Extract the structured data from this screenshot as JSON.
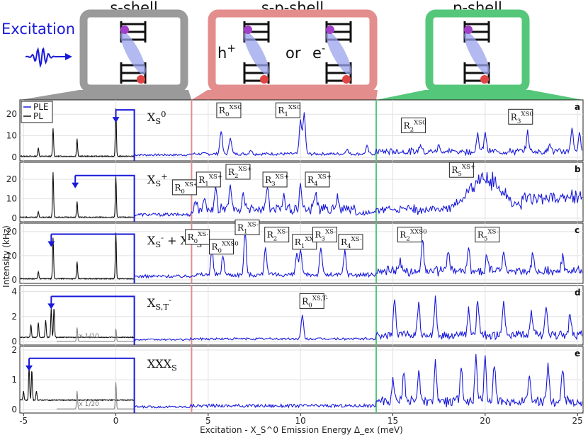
{
  "header": {
    "shells": [
      "s-shell",
      "s-p-shell",
      "p-shell"
    ],
    "excitation_label": "Excitation",
    "sp_text_left": "h",
    "sp_text_left_sup": "+",
    "sp_text_mid": "or",
    "sp_text_right": "e",
    "sp_text_right_sup": "-",
    "shell_colors": [
      "#9a9a9a",
      "#e38d8d",
      "#55c77a"
    ]
  },
  "chart_data": {
    "type": "line",
    "xlabel": "Excitation - X_S^0 Emission Energy Δ_ex (meV)",
    "ylabel": "Intensity (kHz)",
    "xlim": [
      -5.2,
      25.3
    ],
    "xticks": [
      "-5",
      "0",
      "5",
      "10",
      "15",
      "20",
      "25"
    ],
    "xtick_values": [
      -5,
      0,
      5,
      10,
      15,
      20,
      25
    ],
    "legend": {
      "entries": [
        "PLE",
        "PL"
      ],
      "colors": [
        "#1a1adb",
        "#111111"
      ],
      "placement": "top-left"
    },
    "vlines": [
      {
        "x": 4.1,
        "color": "#e38d8d"
      },
      {
        "x": 14.1,
        "color": "#55c77a"
      }
    ],
    "panels": [
      {
        "letter": "a",
        "name": "X_S^0",
        "ylim": [
          0,
          25
        ],
        "yticks": [
          "0",
          "10",
          "20"
        ],
        "ytick_values": [
          0,
          10,
          20
        ],
        "excitation_arrow_x": 0,
        "pl_peaks": [
          [
            -4.2,
            4
          ],
          [
            -3.4,
            13
          ],
          [
            -2.1,
            8
          ],
          [
            0,
            22
          ]
        ],
        "ple_peaks": [
          [
            5.7,
            11
          ],
          [
            6.2,
            8
          ],
          [
            7.3,
            2
          ],
          [
            10.0,
            16
          ],
          [
            10.2,
            19
          ],
          [
            12.5,
            2.5
          ],
          [
            13.6,
            3.5
          ],
          [
            16.5,
            4
          ],
          [
            17.5,
            3
          ],
          [
            19.6,
            8
          ],
          [
            20.0,
            9
          ],
          [
            22.3,
            9
          ],
          [
            23.5,
            4
          ],
          [
            24.7,
            11
          ],
          [
            25.1,
            8
          ]
        ],
        "ple_base": 1.5,
        "labels": [
          {
            "text": "R_0^{X_S^0}",
            "x": 6.0,
            "y": 21
          },
          {
            "text": "R_1^{X_S^0}",
            "x": 9.2,
            "y": 21
          },
          {
            "text": "R_2^{X_S^0}",
            "x": 16.0,
            "y": 14
          },
          {
            "text": "R_3^{X_S^0}",
            "x": 21.8,
            "y": 18
          }
        ]
      },
      {
        "letter": "b",
        "name": "X_S^+",
        "ylim": [
          0,
          27
        ],
        "yticks": [
          "0",
          "10",
          "20"
        ],
        "ytick_values": [
          0,
          10,
          20
        ],
        "excitation_arrow_x": -2.2,
        "pl_peaks": [
          [
            -4.2,
            3
          ],
          [
            -3.4,
            23
          ],
          [
            -2.1,
            8
          ],
          [
            0,
            21
          ]
        ],
        "ple_peaks": [
          [
            4.3,
            5
          ],
          [
            4.8,
            7
          ],
          [
            5.4,
            10
          ],
          [
            6.2,
            12
          ],
          [
            6.9,
            9
          ],
          [
            8.2,
            12
          ],
          [
            9.1,
            9
          ],
          [
            10.0,
            12
          ],
          [
            10.8,
            8
          ],
          [
            12.0,
            6
          ]
        ],
        "ple_base": 2.5,
        "ple_hump": {
          "center": 20.0,
          "width": 1.2,
          "height": 17
        },
        "labels": [
          {
            "text": "R_0^{X_S^+}",
            "x": 3.6,
            "y": 15
          },
          {
            "text": "R_1^{X_S^+}",
            "x": 4.9,
            "y": 19
          },
          {
            "text": "R_2^{X_S^+}",
            "x": 6.5,
            "y": 23
          },
          {
            "text": "R_3^{X_S^+}",
            "x": 8.5,
            "y": 19
          },
          {
            "text": "R_4^{X_S^+}",
            "x": 10.8,
            "y": 19
          },
          {
            "text": "R_5^{X_S^+}",
            "x": 18.6,
            "y": 24
          }
        ]
      },
      {
        "letter": "c",
        "name": "X_S^- + XX_S^0",
        "ylim": [
          0,
          22
        ],
        "yticks": [
          "0",
          "10",
          "20"
        ],
        "ytick_values": [
          0,
          10,
          20
        ],
        "excitation_arrow_x": -3.5,
        "pl_peaks": [
          [
            -4.2,
            3
          ],
          [
            -3.4,
            17
          ],
          [
            -2.1,
            7
          ],
          [
            0,
            19
          ]
        ],
        "ple_peaks": [
          [
            5.2,
            11
          ],
          [
            5.8,
            8
          ],
          [
            7.0,
            18
          ],
          [
            8.1,
            12
          ],
          [
            9.8,
            9
          ],
          [
            10.0,
            10
          ],
          [
            11.1,
            12
          ],
          [
            12.4,
            10
          ],
          [
            15.4,
            5
          ],
          [
            16.6,
            14
          ],
          [
            18.0,
            8
          ],
          [
            19.1,
            10
          ],
          [
            20.1,
            8
          ],
          [
            21.0,
            9
          ],
          [
            22.6,
            8
          ],
          [
            24.2,
            6
          ]
        ],
        "ple_base": 2.0,
        "labels": [
          {
            "text": "R_0^{X_S^-}",
            "x": 4.3,
            "y": 17
          },
          {
            "text": "R_0^{XX_S^0}",
            "x": 5.6,
            "y": 13
          },
          {
            "text": "R_1^{X_S^-}",
            "x": 7.0,
            "y": 21
          },
          {
            "text": "R_2^{X_S^-}",
            "x": 8.6,
            "y": 18
          },
          {
            "text": "R_1^{XX_S^0}",
            "x": 10.1,
            "y": 15
          },
          {
            "text": "R_3^{X_S^-}",
            "x": 11.2,
            "y": 18
          },
          {
            "text": "R_4^{X_S^-}",
            "x": 12.6,
            "y": 15
          },
          {
            "text": "R_2^{XX_S^0}",
            "x": 15.8,
            "y": 18
          },
          {
            "text": "R_5^{X_S^-}",
            "x": 20.0,
            "y": 18
          }
        ]
      },
      {
        "letter": "d",
        "name": "X_{S,T}^-",
        "ylim": [
          0,
          4.2
        ],
        "yticks": [
          "0",
          "2",
          "4"
        ],
        "ytick_values": [
          0,
          2,
          4
        ],
        "excitation_arrow_x": -3.5,
        "scale_note": "x 1/10",
        "pl_peaks": [
          [
            -4.6,
            1.0
          ],
          [
            -4.2,
            1.2
          ],
          [
            -3.8,
            1.4
          ],
          [
            -3.5,
            2.3
          ],
          [
            -3.35,
            2.4
          ]
        ],
        "pl_scaled_peaks": [
          [
            -2.1,
            1.1
          ],
          [
            0,
            1.0
          ]
        ],
        "ple_peaks": [
          [
            10.1,
            1.9
          ],
          [
            15.1,
            3.0
          ],
          [
            16.4,
            2.4
          ],
          [
            17.3,
            3.0
          ],
          [
            19.1,
            2.0
          ],
          [
            19.6,
            2.9
          ],
          [
            21.0,
            2.7
          ],
          [
            22.5,
            2.0
          ],
          [
            23.3,
            2.2
          ],
          [
            24.6,
            1.8
          ]
        ],
        "ple_base": 0.2,
        "labels": [
          {
            "text": "R_0^{X_{S,T}^-}",
            "x": 10.5,
            "y": 3.1
          }
        ]
      },
      {
        "letter": "e",
        "name": "XXX_S",
        "ylim": [
          0,
          2.0
        ],
        "yticks": [
          "0",
          "1",
          "2"
        ],
        "ytick_values": [
          0,
          1,
          2
        ],
        "excitation_arrow_x": -4.7,
        "scale_note": "x 1/20",
        "pl_peaks": [
          [
            -5.0,
            0.3
          ],
          [
            -4.7,
            1.1
          ],
          [
            -4.55,
            1.0
          ],
          [
            -4.3,
            0.3
          ]
        ],
        "pl_scaled_peaks": [
          [
            -3.4,
            0.8
          ],
          [
            -2.1,
            0.6
          ],
          [
            0,
            0.9
          ]
        ],
        "ple_peaks": [
          [
            15.0,
            0.8
          ],
          [
            15.6,
            1.0
          ],
          [
            16.4,
            1.1
          ],
          [
            17.3,
            1.3
          ],
          [
            18.7,
            1.2
          ],
          [
            19.5,
            1.5
          ],
          [
            20.0,
            1.4
          ],
          [
            20.5,
            1.2
          ],
          [
            22.4,
            1.0
          ],
          [
            23.4,
            1.2
          ],
          [
            24.2,
            1.0
          ]
        ],
        "ple_base": 0.12,
        "labels": []
      }
    ]
  }
}
